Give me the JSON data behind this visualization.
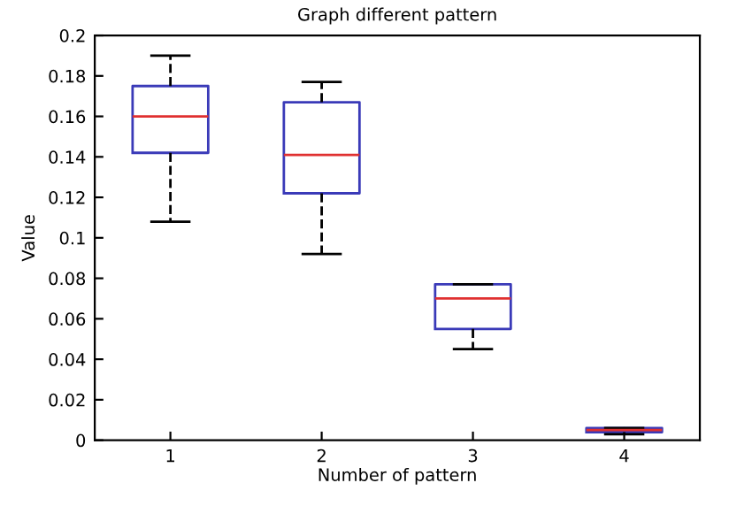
{
  "chart_data": {
    "type": "box",
    "title": "Graph different pattern",
    "xlabel": "Number of pattern",
    "ylabel": "Value",
    "categories": [
      "1",
      "2",
      "3",
      "4"
    ],
    "boxes": [
      {
        "low": 0.108,
        "q1": 0.142,
        "median": 0.16,
        "q3": 0.175,
        "high": 0.19
      },
      {
        "low": 0.092,
        "q1": 0.122,
        "median": 0.141,
        "q3": 0.167,
        "high": 0.177
      },
      {
        "low": 0.045,
        "q1": 0.055,
        "median": 0.07,
        "q3": 0.077,
        "high": 0.077
      },
      {
        "low": 0.003,
        "q1": 0.004,
        "median": 0.005,
        "q3": 0.006,
        "high": 0.006
      }
    ],
    "color": "#3a3ab8",
    "line_style": "dashed",
    "ylim": [
      0,
      0.2
    ],
    "yticks": [
      0,
      0.02,
      0.04,
      0.06,
      0.08,
      0.1,
      0.12,
      0.14,
      0.16,
      0.18,
      0.2
    ],
    "grid": false
  }
}
